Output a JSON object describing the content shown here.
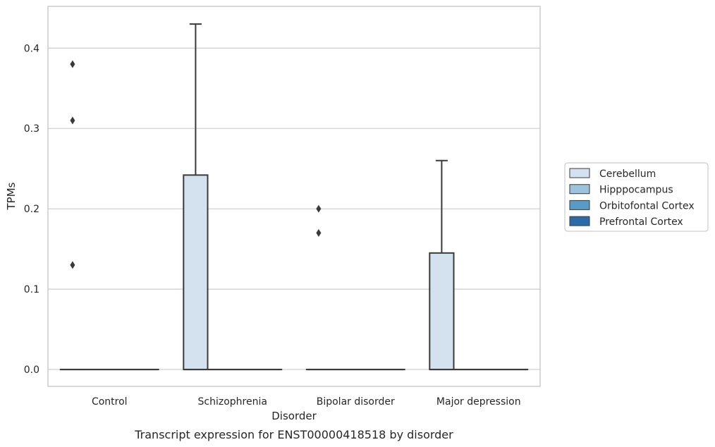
{
  "caption": "Transcript expression for ENST00000418518 by disorder",
  "chart_data": {
    "type": "box",
    "title": "",
    "xlabel": "Disorder",
    "ylabel": "TPMs",
    "ylim": [
      -0.021,
      0.452
    ],
    "yticks": [
      0.0,
      0.1,
      0.2,
      0.3,
      0.4
    ],
    "ytick_labels": [
      "0.0",
      "0.1",
      "0.2",
      "0.3",
      "0.4"
    ],
    "grid": "horizontal",
    "legend_position": "right",
    "categories": [
      "Control",
      "Schizophrenia",
      "Bipolar disorder",
      "Major depression"
    ],
    "series": [
      {
        "name": "Cerebellum",
        "color": "#d4e2f0",
        "boxes": [
          {
            "q1": 0.0,
            "median": 0.0,
            "q3": 0.0,
            "whisker_low": 0.0,
            "whisker_high": 0.0,
            "outliers": [
              0.13,
              0.31,
              0.38
            ]
          },
          {
            "q1": 0.0,
            "median": 0.0,
            "q3": 0.242,
            "whisker_low": 0.0,
            "whisker_high": 0.43,
            "outliers": []
          },
          {
            "q1": 0.0,
            "median": 0.0,
            "q3": 0.0,
            "whisker_low": 0.0,
            "whisker_high": 0.0,
            "outliers": [
              0.17,
              0.2
            ]
          },
          {
            "q1": 0.0,
            "median": 0.0,
            "q3": 0.145,
            "whisker_low": 0.0,
            "whisker_high": 0.26,
            "outliers": []
          }
        ]
      },
      {
        "name": "Hipppocampus",
        "color": "#9bc3dc",
        "boxes": [
          {
            "q1": 0.0,
            "median": 0.0,
            "q3": 0.0,
            "whisker_low": 0.0,
            "whisker_high": 0.0,
            "outliers": []
          },
          {
            "q1": 0.0,
            "median": 0.0,
            "q3": 0.0,
            "whisker_low": 0.0,
            "whisker_high": 0.0,
            "outliers": []
          },
          {
            "q1": 0.0,
            "median": 0.0,
            "q3": 0.0,
            "whisker_low": 0.0,
            "whisker_high": 0.0,
            "outliers": []
          },
          {
            "q1": 0.0,
            "median": 0.0,
            "q3": 0.0,
            "whisker_low": 0.0,
            "whisker_high": 0.0,
            "outliers": []
          }
        ]
      },
      {
        "name": "Orbitofontal Cortex",
        "color": "#5a9ac7",
        "boxes": [
          {
            "q1": 0.0,
            "median": 0.0,
            "q3": 0.0,
            "whisker_low": 0.0,
            "whisker_high": 0.0,
            "outliers": []
          },
          {
            "q1": 0.0,
            "median": 0.0,
            "q3": 0.0,
            "whisker_low": 0.0,
            "whisker_high": 0.0,
            "outliers": []
          },
          {
            "q1": 0.0,
            "median": 0.0,
            "q3": 0.0,
            "whisker_low": 0.0,
            "whisker_high": 0.0,
            "outliers": []
          },
          {
            "q1": 0.0,
            "median": 0.0,
            "q3": 0.0,
            "whisker_low": 0.0,
            "whisker_high": 0.0,
            "outliers": []
          }
        ]
      },
      {
        "name": "Prefrontal Cortex",
        "color": "#2b6ca8",
        "boxes": [
          {
            "q1": 0.0,
            "median": 0.0,
            "q3": 0.0,
            "whisker_low": 0.0,
            "whisker_high": 0.0,
            "outliers": []
          },
          {
            "q1": 0.0,
            "median": 0.0,
            "q3": 0.0,
            "whisker_low": 0.0,
            "whisker_high": 0.0,
            "outliers": []
          },
          {
            "q1": 0.0,
            "median": 0.0,
            "q3": 0.0,
            "whisker_low": 0.0,
            "whisker_high": 0.0,
            "outliers": []
          },
          {
            "q1": 0.0,
            "median": 0.0,
            "q3": 0.0,
            "whisker_low": 0.0,
            "whisker_high": 0.0,
            "outliers": []
          }
        ]
      }
    ]
  }
}
